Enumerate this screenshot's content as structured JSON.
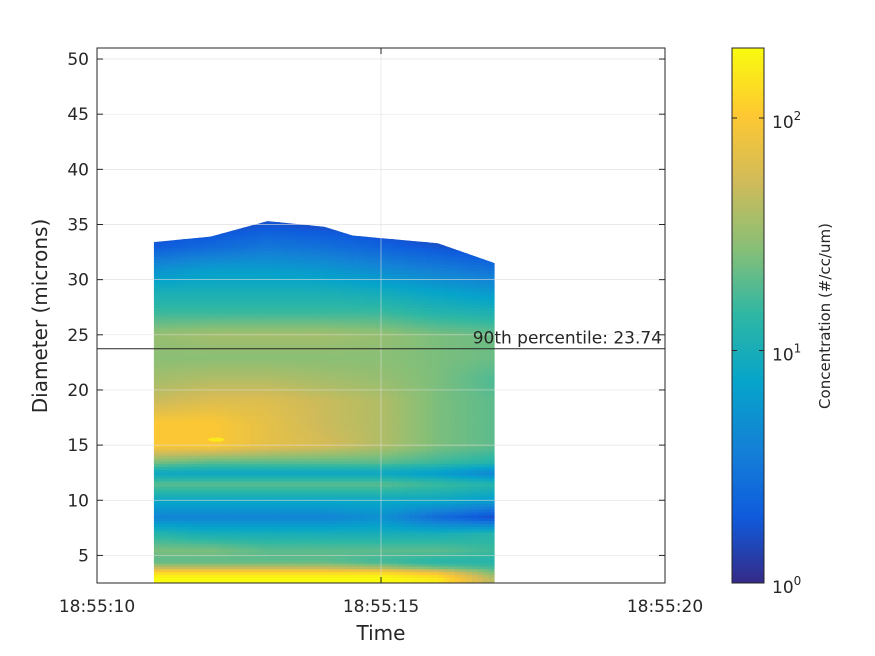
{
  "chart_data": {
    "type": "heatmap",
    "style": "filled-contour",
    "xlabel": "Time",
    "ylabel": "Diameter (microns)",
    "colorbar_label": "Concentration (#/cc/um)",
    "colorbar_scale": "log",
    "colorbar_range": [
      1,
      200
    ],
    "colorbar_ticks": [
      {
        "value": 1,
        "base": "10",
        "exp": "0"
      },
      {
        "value": 10,
        "base": "10",
        "exp": "1"
      },
      {
        "value": 100,
        "base": "10",
        "exp": "2"
      }
    ],
    "colormap": [
      "#352a87",
      "#0f5cdd",
      "#1481d6",
      "#06a4ca",
      "#2eb7a4",
      "#87bf77",
      "#d1bb59",
      "#fec832",
      "#f9fb0e"
    ],
    "x_ticks": [
      "18:55:10",
      "18:55:15",
      "18:55:20"
    ],
    "x_range_seconds": [
      10,
      20
    ],
    "y_ticks": [
      5,
      10,
      15,
      20,
      25,
      30,
      35,
      40,
      45,
      50
    ],
    "ylim": [
      2.5,
      51
    ],
    "grid": true,
    "annotation": {
      "text": "90th percentile: 23.74",
      "y": 23.74
    },
    "times_seconds": [
      11,
      12,
      13,
      14,
      15,
      16,
      17
    ],
    "diameters": [
      3,
      3.5,
      4,
      4.5,
      5.5,
      7,
      8.5,
      10,
      11.5,
      12.5,
      13.5,
      15,
      17,
      19,
      21,
      23,
      25,
      27,
      29,
      31,
      33,
      35
    ],
    "upper_edge": [
      {
        "t": 11,
        "d": 33.4
      },
      {
        "t": 12,
        "d": 33.9
      },
      {
        "t": 13,
        "d": 35.3
      },
      {
        "t": 14,
        "d": 34.8
      },
      {
        "t": 14.5,
        "d": 34.0
      },
      {
        "t": 16,
        "d": 33.3
      },
      {
        "t": 17,
        "d": 31.5
      }
    ],
    "log10_concentration": [
      [
        2.3,
        2.3,
        2.3,
        2.3,
        2.3,
        2.2,
        1.6
      ],
      [
        2.1,
        2.1,
        2.1,
        2.1,
        2.1,
        1.9,
        1.4
      ],
      [
        1.6,
        1.6,
        1.6,
        1.6,
        1.5,
        1.3,
        1.2
      ],
      [
        1.3,
        1.3,
        1.3,
        1.3,
        1.2,
        1.1,
        1.1
      ],
      [
        1.4,
        1.4,
        1.3,
        1.3,
        1.3,
        1.3,
        1.2
      ],
      [
        1.1,
        1.0,
        1.0,
        1.0,
        1.0,
        1.0,
        1.1
      ],
      [
        0.6,
        0.6,
        0.6,
        0.6,
        0.7,
        0.4,
        0.2
      ],
      [
        0.9,
        0.9,
        0.9,
        0.9,
        0.9,
        0.9,
        0.8
      ],
      [
        1.3,
        1.3,
        1.3,
        1.3,
        1.3,
        1.2,
        1.1
      ],
      [
        0.9,
        0.9,
        0.9,
        0.9,
        0.9,
        0.8,
        0.6
      ],
      [
        1.4,
        1.3,
        1.3,
        1.3,
        1.3,
        1.2,
        1.1
      ],
      [
        2.0,
        2.0,
        1.85,
        1.75,
        1.6,
        1.4,
        1.3
      ],
      [
        2.0,
        2.0,
        1.85,
        1.7,
        1.6,
        1.4,
        1.3
      ],
      [
        1.7,
        1.8,
        1.8,
        1.7,
        1.6,
        1.4,
        1.3
      ],
      [
        1.55,
        1.6,
        1.6,
        1.55,
        1.5,
        1.4,
        1.25
      ],
      [
        1.45,
        1.45,
        1.45,
        1.45,
        1.45,
        1.4,
        1.35
      ],
      [
        1.5,
        1.55,
        1.55,
        1.55,
        1.5,
        1.4,
        1.35
      ],
      [
        1.2,
        1.2,
        1.2,
        1.2,
        1.2,
        1.1,
        1.05
      ],
      [
        1.0,
        1.0,
        1.0,
        1.0,
        0.95,
        0.85,
        0.75
      ],
      [
        0.7,
        0.8,
        0.8,
        0.75,
        0.65,
        0.55,
        0.45
      ],
      [
        0.3,
        0.4,
        0.5,
        0.45,
        0.35,
        0.25,
        0.15
      ],
      [
        0.1,
        0.15,
        0.25,
        0.2,
        0.12,
        0.05,
        0.02
      ]
    ]
  }
}
